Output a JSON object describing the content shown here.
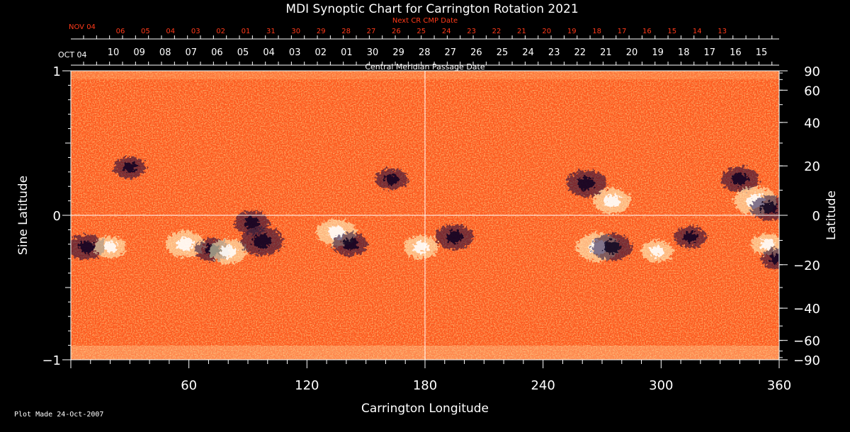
{
  "chart_data": {
    "type": "heatmap",
    "title": "MDI Synoptic Chart for Carrington Rotation 2021",
    "xlabel": "Carrington Longitude",
    "ylabel_left": "Sine Latitude",
    "ylabel_right": "Latitude",
    "xlim": [
      0,
      360
    ],
    "ylim": [
      -1,
      1
    ],
    "x_ticks": [
      60,
      120,
      180,
      240,
      300,
      360
    ],
    "y_ticks_left": [
      {
        "value": 1,
        "label": "1"
      },
      {
        "value": 0,
        "label": "0"
      },
      {
        "value": -1,
        "label": "−1"
      }
    ],
    "y_ticks_right": [
      {
        "deg": 90,
        "label": "90"
      },
      {
        "deg": 60,
        "label": "60"
      },
      {
        "deg": 40,
        "label": "40"
      },
      {
        "deg": 20,
        "label": "20"
      },
      {
        "deg": 0,
        "label": "0"
      },
      {
        "deg": -20,
        "label": "−20"
      },
      {
        "deg": -40,
        "label": "−40"
      },
      {
        "deg": -60,
        "label": "−60"
      },
      {
        "deg": -90,
        "label": "−90"
      }
    ],
    "cmp_axis_label": "Central Meridian Passage Date",
    "cmp_first_label": "OCT 04",
    "cmp_dates": [
      "10",
      "09",
      "08",
      "07",
      "06",
      "05",
      "04",
      "03",
      "02",
      "01",
      "30",
      "29",
      "28",
      "27",
      "26",
      "25",
      "24",
      "23",
      "22",
      "21",
      "20",
      "19",
      "18",
      "17",
      "16",
      "15"
    ],
    "next_cr_axis_label": "Next CR CMP Date",
    "next_cr_first_label": "NOV 04",
    "next_cr_dates": [
      "06",
      "05",
      "04",
      "03",
      "02",
      "01",
      "31",
      "30",
      "29",
      "28",
      "27",
      "26",
      "25",
      "24",
      "23",
      "22",
      "21",
      "20",
      "19",
      "18",
      "17",
      "16",
      "15",
      "14",
      "13"
    ],
    "gridlines": {
      "x": [
        180
      ],
      "y": [
        0
      ]
    },
    "colors": {
      "background": "#ff5a1e",
      "positive": "#ffffcc",
      "negative": "#1a0a3a",
      "grid": "#ffffff",
      "date_label": "#ff3a1a"
    },
    "active_regions": [
      {
        "lon": 8,
        "sinlat": -0.22,
        "polarity": "negative",
        "strength": 0.8
      },
      {
        "lon": 20,
        "sinlat": -0.22,
        "polarity": "positive",
        "strength": 0.6
      },
      {
        "lon": 30,
        "sinlat": 0.33,
        "polarity": "negative",
        "strength": 0.6
      },
      {
        "lon": 58,
        "sinlat": -0.2,
        "polarity": "positive",
        "strength": 0.9
      },
      {
        "lon": 72,
        "sinlat": -0.24,
        "polarity": "negative",
        "strength": 0.7
      },
      {
        "lon": 80,
        "sinlat": -0.25,
        "polarity": "positive",
        "strength": 0.8
      },
      {
        "lon": 97,
        "sinlat": -0.18,
        "polarity": "negative",
        "strength": 1.0
      },
      {
        "lon": 92,
        "sinlat": -0.05,
        "polarity": "negative",
        "strength": 0.7
      },
      {
        "lon": 135,
        "sinlat": -0.12,
        "polarity": "positive",
        "strength": 0.9
      },
      {
        "lon": 142,
        "sinlat": -0.2,
        "polarity": "negative",
        "strength": 0.7
      },
      {
        "lon": 163,
        "sinlat": 0.25,
        "polarity": "negative",
        "strength": 0.6
      },
      {
        "lon": 178,
        "sinlat": -0.22,
        "polarity": "positive",
        "strength": 0.7
      },
      {
        "lon": 195,
        "sinlat": -0.15,
        "polarity": "negative",
        "strength": 0.8
      },
      {
        "lon": 262,
        "sinlat": 0.22,
        "polarity": "negative",
        "strength": 0.9
      },
      {
        "lon": 275,
        "sinlat": 0.1,
        "polarity": "positive",
        "strength": 0.8
      },
      {
        "lon": 268,
        "sinlat": -0.22,
        "polarity": "positive",
        "strength": 1.0
      },
      {
        "lon": 275,
        "sinlat": -0.22,
        "polarity": "negative",
        "strength": 0.9
      },
      {
        "lon": 298,
        "sinlat": -0.25,
        "polarity": "positive",
        "strength": 0.6
      },
      {
        "lon": 315,
        "sinlat": -0.15,
        "polarity": "negative",
        "strength": 0.6
      },
      {
        "lon": 340,
        "sinlat": 0.25,
        "polarity": "negative",
        "strength": 0.8
      },
      {
        "lon": 348,
        "sinlat": 0.1,
        "polarity": "positive",
        "strength": 1.0
      },
      {
        "lon": 355,
        "sinlat": 0.05,
        "polarity": "negative",
        "strength": 0.8
      },
      {
        "lon": 354,
        "sinlat": -0.2,
        "polarity": "positive",
        "strength": 0.6
      },
      {
        "lon": 359,
        "sinlat": -0.3,
        "polarity": "negative",
        "strength": 0.6
      }
    ]
  },
  "footer": {
    "plot_made": "Plot Made 24-Oct-2007"
  }
}
